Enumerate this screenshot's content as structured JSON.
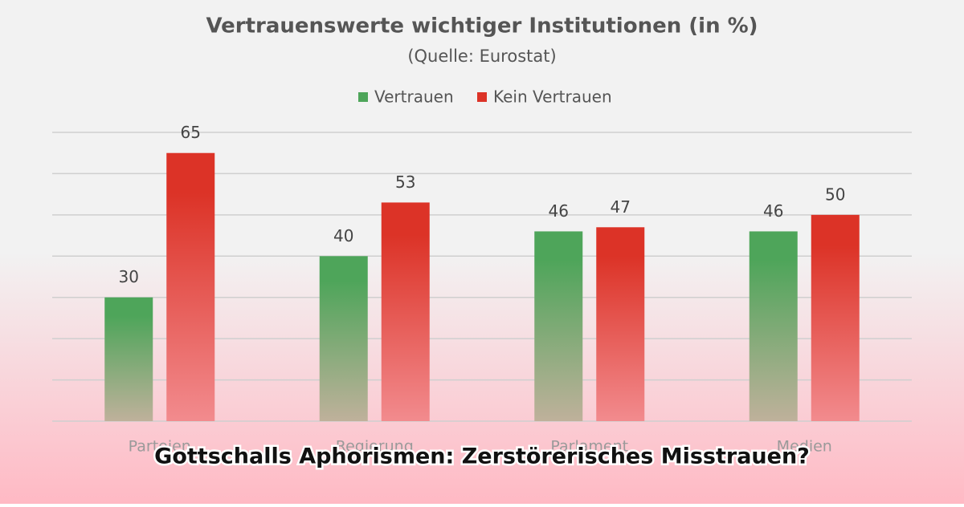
{
  "chart_data": {
    "type": "bar",
    "title": "Vertrauenswerte wichtiger Institutionen (in %)",
    "subtitle": "(Quelle: Eurostat)",
    "categories": [
      "Parteien",
      "Regierung",
      "Parlament",
      "Medien"
    ],
    "series": [
      {
        "name": "Vertrauen",
        "color": "#4ea55a",
        "values": [
          30,
          40,
          46,
          46
        ]
      },
      {
        "name": "Kein Vertrauen",
        "color": "#dc3327",
        "values": [
          65,
          53,
          47,
          50
        ]
      }
    ],
    "ylim": [
      0,
      70
    ],
    "yticks": [
      0,
      10,
      20,
      30,
      40,
      50,
      60,
      70
    ],
    "grid": true,
    "legend": "top"
  },
  "caption": "Gottschalls Aphorismen: Zerstörerisches Misstrauen?"
}
